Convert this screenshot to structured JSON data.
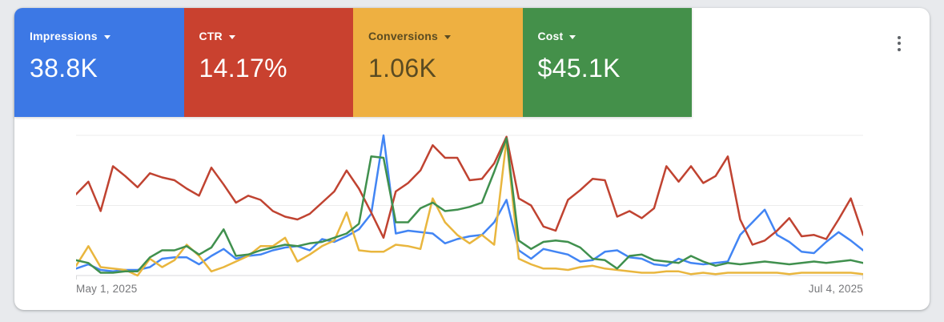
{
  "page": {
    "background": "#e8eaed",
    "card_background": "#ffffff"
  },
  "icons": {
    "more_options": "kebab-vertical-three-dots",
    "metric_dropdown": "triangle-down"
  },
  "metric_cards": [
    {
      "label": "Impressions",
      "value": "38.8K",
      "bg": "#3c78e5",
      "text": "#ffffff"
    },
    {
      "label": "CTR",
      "value": "14.17%",
      "bg": "#c9412f",
      "text": "#ffffff"
    },
    {
      "label": "Conversions",
      "value": "1.06K",
      "bg": "#eeb041",
      "text": "#5a4b22"
    },
    {
      "label": "Cost",
      "value": "$45.1K",
      "bg": "#44904a",
      "text": "#ffffff"
    }
  ],
  "chart_data": {
    "type": "line",
    "title": "",
    "x_axis": {
      "start_label": "May 1, 2025",
      "end_label": "Jul 4, 2025",
      "num_points": 65,
      "unit": "day"
    },
    "y_axis": {
      "min": 0,
      "max": 100,
      "unit": "percent-of-plot-height",
      "gridlines_pct": [
        0,
        50,
        100
      ]
    },
    "grid": "horizontal-only",
    "legend": "metric-cards-above",
    "series": [
      {
        "name": "Impressions",
        "color": "#4285f4",
        "values": [
          5,
          8,
          4,
          3,
          4,
          4,
          6,
          12,
          13,
          13,
          8,
          14,
          19,
          12,
          14,
          15,
          18,
          20,
          21,
          18,
          26,
          24,
          28,
          33,
          44,
          100,
          30,
          32,
          31,
          30,
          23,
          26,
          28,
          29,
          38,
          54,
          18,
          12,
          19,
          17,
          15,
          10,
          11,
          17,
          18,
          13,
          12,
          8,
          7,
          12,
          9,
          8,
          9,
          10,
          29,
          38,
          47,
          29,
          24,
          17,
          16,
          24,
          31,
          25,
          18
        ]
      },
      {
        "name": "CTR",
        "color": "#c04331",
        "values": [
          58,
          67,
          46,
          78,
          71,
          63,
          73,
          70,
          68,
          62,
          57,
          77,
          65,
          52,
          57,
          54,
          46,
          42,
          40,
          44,
          52,
          60,
          75,
          62,
          45,
          27,
          60,
          66,
          75,
          93,
          84,
          84,
          68,
          69,
          80,
          99,
          55,
          50,
          35,
          32,
          54,
          61,
          69,
          68,
          42,
          46,
          41,
          48,
          78,
          67,
          78,
          66,
          71,
          85,
          40,
          22,
          25,
          32,
          41,
          28,
          29,
          26,
          40,
          55,
          29
        ]
      },
      {
        "name": "Conversions",
        "color": "#e9b63e",
        "values": [
          7,
          21,
          6,
          5,
          4,
          0,
          12,
          6,
          11,
          22,
          14,
          3,
          6,
          10,
          14,
          21,
          21,
          27,
          10,
          15,
          21,
          25,
          45,
          18,
          17,
          17,
          22,
          21,
          19,
          55,
          38,
          29,
          23,
          29,
          22,
          97,
          12,
          8,
          5,
          5,
          4,
          6,
          7,
          5,
          4,
          3,
          2,
          2,
          3,
          3,
          1,
          2,
          1,
          2,
          2,
          2,
          2,
          2,
          1,
          2,
          2,
          2,
          2,
          2,
          1
        ]
      },
      {
        "name": "Cost",
        "color": "#40904e",
        "values": [
          11,
          9,
          2,
          2,
          3,
          3,
          13,
          18,
          18,
          21,
          15,
          20,
          33,
          14,
          15,
          18,
          20,
          22,
          21,
          23,
          24,
          27,
          30,
          37,
          85,
          84,
          38,
          38,
          48,
          52,
          46,
          47,
          49,
          52,
          74,
          98,
          25,
          19,
          24,
          25,
          24,
          20,
          12,
          11,
          5,
          14,
          15,
          11,
          10,
          9,
          14,
          10,
          7,
          9,
          8,
          9,
          10,
          9,
          8,
          9,
          10,
          9,
          10,
          11,
          9
        ]
      }
    ]
  }
}
